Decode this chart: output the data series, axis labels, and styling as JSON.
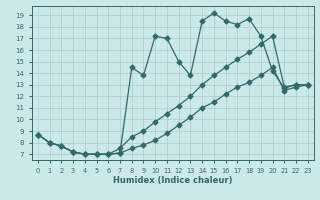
{
  "xlabel": "Humidex (Indice chaleur)",
  "bg_color": "#cce8e8",
  "grid_color": "#aacccc",
  "line_color": "#2e6b6b",
  "marker": "D",
  "markersize": 2.5,
  "linewidth": 0.9,
  "xlim": [
    -0.5,
    23.5
  ],
  "ylim": [
    6.5,
    19.8
  ],
  "xticks": [
    0,
    1,
    2,
    3,
    4,
    5,
    6,
    7,
    8,
    9,
    10,
    11,
    12,
    13,
    14,
    15,
    16,
    17,
    18,
    19,
    20,
    21,
    22,
    23
  ],
  "yticks": [
    7,
    8,
    9,
    10,
    11,
    12,
    13,
    14,
    15,
    16,
    17,
    18,
    19
  ],
  "series": [
    {
      "x": [
        0,
        1,
        2,
        3,
        4,
        5,
        6,
        7,
        8,
        9,
        10,
        11,
        12,
        13,
        14,
        15,
        16,
        17,
        18,
        19,
        20,
        21,
        22,
        23
      ],
      "y": [
        8.7,
        8.0,
        7.7,
        7.2,
        7.0,
        7.0,
        7.0,
        7.1,
        14.5,
        13.8,
        17.2,
        17.0,
        15.0,
        13.8,
        18.5,
        19.2,
        18.5,
        18.2,
        18.7,
        17.2,
        14.2,
        12.7,
        13.0,
        13.0
      ]
    },
    {
      "x": [
        0,
        1,
        2,
        3,
        4,
        5,
        6,
        7,
        8,
        9,
        10,
        11,
        12,
        13,
        14,
        15,
        16,
        17,
        18,
        19,
        20,
        21,
        22,
        23
      ],
      "y": [
        8.7,
        8.0,
        7.7,
        7.2,
        7.0,
        7.0,
        7.0,
        7.5,
        8.5,
        9.0,
        9.8,
        10.5,
        11.2,
        12.0,
        13.0,
        13.8,
        14.5,
        15.2,
        15.8,
        16.5,
        17.2,
        12.8,
        13.0,
        13.0
      ]
    },
    {
      "x": [
        0,
        1,
        2,
        3,
        4,
        5,
        6,
        7,
        8,
        9,
        10,
        11,
        12,
        13,
        14,
        15,
        16,
        17,
        18,
        19,
        20,
        21,
        22,
        23
      ],
      "y": [
        8.7,
        8.0,
        7.7,
        7.2,
        7.0,
        7.0,
        7.0,
        7.1,
        7.5,
        7.8,
        8.2,
        8.8,
        9.5,
        10.2,
        11.0,
        11.5,
        12.2,
        12.8,
        13.2,
        13.8,
        14.5,
        12.5,
        12.8,
        13.0
      ]
    }
  ]
}
